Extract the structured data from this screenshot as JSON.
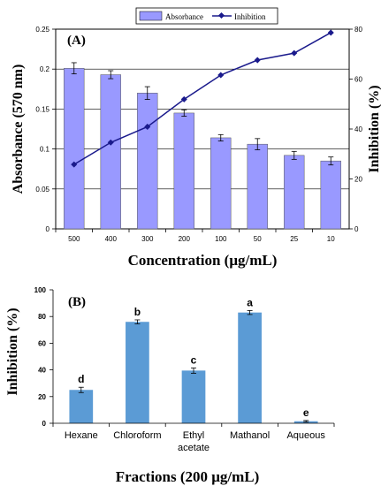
{
  "chart_data": [
    {
      "panel_label": "(A)",
      "type": "bar+line",
      "categories": [
        "500",
        "400",
        "300",
        "200",
        "100",
        "50",
        "25",
        "10"
      ],
      "xlabel": "Concentration (μg/mL)",
      "ylabel": "Absorbance (570 nm)",
      "y2label": "Inhibition (%)",
      "ylim": [
        0,
        0.25
      ],
      "yticks": [
        0,
        0.05,
        0.1,
        0.15,
        0.2,
        0.25
      ],
      "ytick_labels": [
        "0",
        "0.05",
        "0.1",
        "0.15",
        "0.2",
        "0.25"
      ],
      "y2lim": [
        0,
        80
      ],
      "y2ticks": [
        0,
        20,
        40,
        60,
        80
      ],
      "grid": "horizontal",
      "legend_position": "top-center",
      "series": [
        {
          "name": "Absorbance",
          "kind": "bar",
          "axis": "left",
          "color": "#9999ff",
          "values": [
            0.201,
            0.193,
            0.17,
            0.145,
            0.114,
            0.106,
            0.092,
            0.085
          ],
          "errors": [
            0.007,
            0.005,
            0.008,
            0.004,
            0.004,
            0.007,
            0.005,
            0.005
          ]
        },
        {
          "name": "Inhibition",
          "kind": "line",
          "axis": "right",
          "color": "#1a1a8c",
          "values": [
            25.8,
            34.6,
            40.9,
            51.9,
            61.6,
            67.6,
            70.4,
            78.6
          ]
        }
      ]
    },
    {
      "panel_label": "(B)",
      "type": "bar",
      "categories": [
        "Hexane",
        "Chloroform",
        "Ethyl acetate",
        "Mathanol",
        "Aqueous"
      ],
      "category_lines": [
        [
          "Hexane"
        ],
        [
          "Chloroform"
        ],
        [
          "Ethyl",
          "acetate"
        ],
        [
          "Mathanol"
        ],
        [
          "Aqueous"
        ]
      ],
      "xlabel": "Fractions (200 μg/mL)",
      "ylabel": "Inhibition (%)",
      "ylim": [
        0,
        100
      ],
      "yticks": [
        0,
        20,
        40,
        60,
        80,
        100
      ],
      "color": "#5b9bd5",
      "values": [
        25,
        76,
        39.5,
        83,
        1.5
      ],
      "errors": [
        2,
        1.5,
        2,
        1.5,
        0.6
      ],
      "annotations": [
        "d",
        "b",
        "c",
        "a",
        "e"
      ]
    }
  ]
}
